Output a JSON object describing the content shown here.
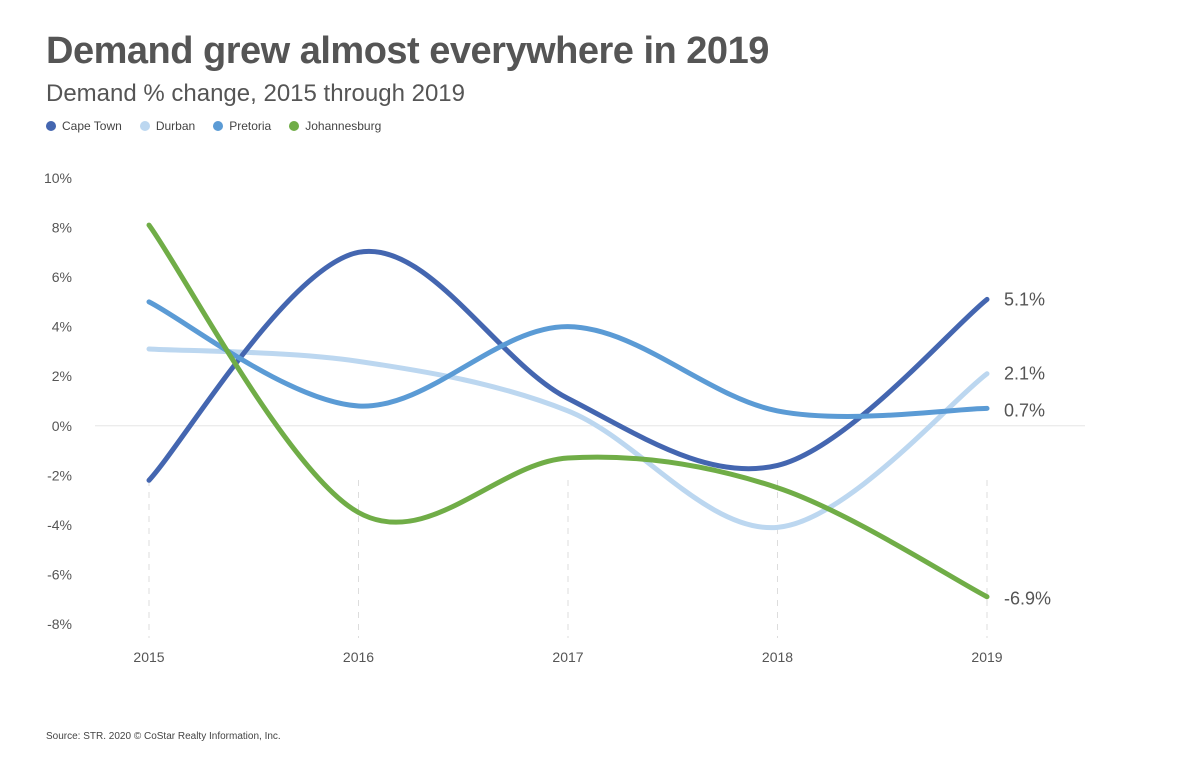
{
  "chart_data": {
    "type": "line",
    "title": "Demand grew almost everywhere in 2019",
    "subtitle": "Demand % change, 2015 through 2019",
    "xlabel": "",
    "ylabel": "",
    "x": [
      "2015",
      "2016",
      "2017",
      "2018",
      "2019"
    ],
    "ylim": [
      -8,
      10
    ],
    "yticks": [
      -8,
      -6,
      -4,
      -2,
      0,
      2,
      4,
      6,
      8,
      10
    ],
    "ytick_labels": [
      "-8%",
      "-6%",
      "-4%",
      "-2%",
      "0%",
      "2%",
      "4%",
      "6%",
      "8%",
      "10%"
    ],
    "series": [
      {
        "name": "Cape Town",
        "color": "#4466b0",
        "values": [
          -2.2,
          7.0,
          1.1,
          -1.6,
          5.1
        ],
        "end_label": "5.1%"
      },
      {
        "name": "Durban",
        "color": "#bcd7f0",
        "values": [
          3.1,
          2.6,
          0.6,
          -4.1,
          2.1
        ],
        "end_label": "2.1%"
      },
      {
        "name": "Pretoria",
        "color": "#5b9bd5",
        "values": [
          5.0,
          0.8,
          4.0,
          0.6,
          0.7
        ],
        "end_label": "0.7%"
      },
      {
        "name": "Johannesburg",
        "color": "#70ad47",
        "values": [
          8.1,
          -3.5,
          -1.3,
          -2.5,
          -6.9
        ],
        "end_label": "-6.9%"
      }
    ],
    "legend_position": "top-left",
    "grid": false
  },
  "source": "Source: STR. 2020 © CoStar Realty Information, Inc."
}
